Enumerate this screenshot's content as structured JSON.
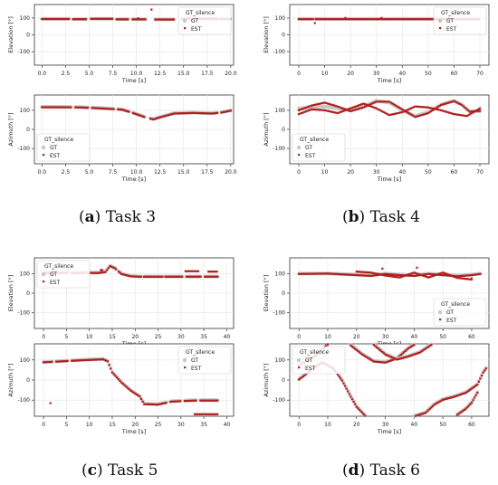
{
  "colors": {
    "gt": "#c8c8c8",
    "est": "#b21e1e",
    "grid": "#e4e4e4",
    "axis": "#333333"
  },
  "legend": {
    "silence": "GT_silence",
    "gt": "GT",
    "est": "EST"
  },
  "captions": [
    {
      "letter": "a",
      "text": " Task 3"
    },
    {
      "letter": "b",
      "text": " Task 4"
    },
    {
      "letter": "c",
      "text": " Task 5"
    },
    {
      "letter": "d",
      "text": " Task 6"
    }
  ],
  "chart_data": [
    {
      "panel": "a",
      "row": "elevation",
      "type": "scatter",
      "xlabel": "Time [s]",
      "ylabel": "Elevation [°]",
      "xlim": [
        -0.8,
        20.3
      ],
      "ylim": [
        -180,
        180
      ],
      "yticks": [
        -100,
        0,
        100
      ],
      "xticks": [
        0.0,
        2.5,
        5.0,
        7.5,
        10.0,
        12.5,
        15.0,
        17.5,
        20.0
      ],
      "xtick_labels": [
        "0.0",
        "2.5",
        "5.0",
        "7.5",
        "10.0",
        "12.5",
        "15.0",
        "17.5",
        "20.0"
      ],
      "legend_position": "top-right",
      "grid": true,
      "gt_segments": [
        [
          0,
          3,
          95
        ],
        [
          3.3,
          4.8,
          93
        ],
        [
          5.2,
          7.6,
          95
        ],
        [
          7.9,
          9.2,
          93
        ],
        [
          9.6,
          11.0,
          93
        ],
        [
          12.0,
          14.0,
          92
        ],
        [
          14.8,
          18.6,
          95
        ],
        [
          18.9,
          20.0,
          95
        ]
      ],
      "est_segments": [
        [
          0,
          3,
          94
        ],
        [
          3.3,
          4.8,
          93
        ],
        [
          5.2,
          7.6,
          95
        ],
        [
          7.9,
          9.2,
          92
        ],
        [
          9.6,
          11.0,
          92
        ],
        [
          12.0,
          14.0,
          91
        ],
        [
          14.8,
          18.6,
          95
        ],
        [
          18.9,
          20.0,
          94
        ]
      ],
      "est_points": [
        [
          11.6,
          150
        ],
        [
          10.2,
          98
        ]
      ]
    },
    {
      "panel": "a",
      "row": "azimuth",
      "type": "scatter",
      "xlabel": "Time [s]",
      "ylabel": "Azimuth [°]",
      "xlim": [
        -0.8,
        20.3
      ],
      "ylim": [
        -180,
        180
      ],
      "yticks": [
        -100,
        0,
        100
      ],
      "xticks": [
        0.0,
        2.5,
        5.0,
        7.5,
        10.0,
        12.5,
        15.0,
        17.5,
        20.0
      ],
      "xtick_labels": [
        "0.0",
        "2.5",
        "5.0",
        "7.5",
        "10.0",
        "12.5",
        "15.0",
        "17.5",
        "20.0"
      ],
      "legend_position": "bottom-left",
      "grid": true,
      "gt_curve": [
        [
          0,
          118
        ],
        [
          2,
          118
        ],
        [
          4,
          117
        ],
        [
          5,
          115
        ],
        [
          7,
          110
        ],
        [
          8.5,
          105
        ],
        [
          9.5,
          90
        ],
        [
          11,
          65
        ],
        [
          11.8,
          55
        ],
        [
          12.5,
          65
        ],
        [
          14,
          85
        ],
        [
          16,
          88
        ],
        [
          18,
          85
        ],
        [
          19,
          90
        ],
        [
          20,
          100
        ]
      ],
      "est_curve": [
        [
          0,
          116
        ],
        [
          2,
          116
        ],
        [
          4,
          115
        ],
        [
          5,
          113
        ],
        [
          7,
          108
        ],
        [
          8.5,
          103
        ],
        [
          9.5,
          88
        ],
        [
          11,
          62
        ],
        [
          11.8,
          52
        ],
        [
          12.5,
          63
        ],
        [
          14,
          83
        ],
        [
          16,
          86
        ],
        [
          18,
          83
        ],
        [
          19,
          88
        ],
        [
          20,
          98
        ]
      ],
      "gaps": [
        [
          3.2,
          3.5
        ],
        [
          5.0,
          5.3
        ],
        [
          7.7,
          8.0
        ],
        [
          9.3,
          9.6
        ],
        [
          11.0,
          11.4
        ],
        [
          18.6,
          18.9
        ]
      ]
    },
    {
      "panel": "b",
      "row": "elevation",
      "type": "scatter",
      "xlabel": "Time [s]",
      "ylabel": "Elevation [°]",
      "xlim": [
        -3.5,
        73.5
      ],
      "ylim": [
        -180,
        180
      ],
      "yticks": [
        -100,
        0,
        100
      ],
      "xticks": [
        0,
        10,
        20,
        30,
        40,
        50,
        60,
        70
      ],
      "xtick_labels": [
        "0",
        "10",
        "20",
        "30",
        "40",
        "50",
        "60",
        "70"
      ],
      "legend_position": "top-right",
      "grid": true,
      "gt_segments": [
        [
          0,
          6,
          95
        ],
        [
          6.5,
          70,
          95
        ]
      ],
      "est_segments": [
        [
          0,
          6,
          93
        ],
        [
          6.5,
          70,
          93
        ]
      ],
      "est_points": [
        [
          6.2,
          70
        ],
        [
          18,
          100
        ],
        [
          32,
          100
        ],
        [
          58,
          100
        ]
      ]
    },
    {
      "panel": "b",
      "row": "azimuth",
      "type": "scatter",
      "xlabel": "Time [s]",
      "ylabel": "Azimuth [°]",
      "xlim": [
        -3.5,
        73.5
      ],
      "ylim": [
        -180,
        180
      ],
      "yticks": [
        -100,
        0,
        100
      ],
      "xticks": [
        0,
        10,
        20,
        30,
        40,
        50,
        60,
        70
      ],
      "xtick_labels": [
        "0",
        "10",
        "20",
        "30",
        "40",
        "50",
        "60",
        "70"
      ],
      "legend_position": "bottom-left",
      "grid": true,
      "gt_curve": [
        [
          0,
          110
        ],
        [
          5,
          115
        ],
        [
          10,
          120
        ],
        [
          15,
          110
        ],
        [
          20,
          100
        ],
        [
          25,
          120
        ],
        [
          30,
          150
        ],
        [
          35,
          140
        ],
        [
          40,
          100
        ],
        [
          45,
          70
        ],
        [
          50,
          90
        ],
        [
          55,
          130
        ],
        [
          60,
          150
        ],
        [
          63,
          130
        ],
        [
          66,
          95
        ],
        [
          70,
          95
        ]
      ],
      "est_curve": [
        [
          0,
          100
        ],
        [
          5,
          125
        ],
        [
          10,
          140
        ],
        [
          15,
          120
        ],
        [
          20,
          95
        ],
        [
          25,
          115
        ],
        [
          30,
          145
        ],
        [
          35,
          145
        ],
        [
          40,
          105
        ],
        [
          45,
          65
        ],
        [
          50,
          85
        ],
        [
          55,
          128
        ],
        [
          60,
          148
        ],
        [
          63,
          128
        ],
        [
          66,
          93
        ],
        [
          70,
          97
        ]
      ],
      "est_curve2": [
        [
          0,
          80
        ],
        [
          5,
          105
        ],
        [
          10,
          100
        ],
        [
          15,
          85
        ],
        [
          20,
          110
        ],
        [
          25,
          135
        ],
        [
          30,
          110
        ],
        [
          35,
          75
        ],
        [
          40,
          90
        ],
        [
          45,
          120
        ],
        [
          50,
          115
        ],
        [
          55,
          100
        ],
        [
          60,
          80
        ],
        [
          65,
          70
        ],
        [
          70,
          110
        ]
      ],
      "gaps": []
    },
    {
      "panel": "c",
      "row": "elevation",
      "type": "scatter",
      "xlabel": "Time [s]",
      "ylabel": "Elevation [°]",
      "xlim": [
        -2,
        41.5
      ],
      "ylim": [
        -180,
        180
      ],
      "yticks": [
        -100,
        0,
        100
      ],
      "xticks": [
        0,
        5,
        10,
        15,
        20,
        25,
        30,
        35,
        40
      ],
      "xtick_labels": [
        "0",
        "5",
        "10",
        "15",
        "20",
        "25",
        "30",
        "35",
        "40"
      ],
      "legend_position": "top-left",
      "grid": true,
      "gt_curve": [
        [
          0,
          105
        ],
        [
          12,
          105
        ],
        [
          13.5,
          110
        ],
        [
          14.5,
          140
        ],
        [
          15.5,
          130
        ],
        [
          17,
          100
        ],
        [
          19,
          88
        ],
        [
          21,
          85
        ],
        [
          38,
          85
        ]
      ],
      "est_curve": [
        [
          0,
          103
        ],
        [
          12,
          103
        ],
        [
          13.5,
          108
        ],
        [
          14.5,
          138
        ],
        [
          15.5,
          128
        ],
        [
          17,
          98
        ],
        [
          19,
          86
        ],
        [
          21,
          84
        ],
        [
          38,
          84
        ]
      ],
      "gaps": [
        [
          2.5,
          3.0
        ],
        [
          5.5,
          6.0
        ],
        [
          9,
          9.3
        ],
        [
          16,
          16.3
        ],
        [
          21.5,
          21.8
        ],
        [
          26,
          26.5
        ],
        [
          30.5,
          31
        ],
        [
          34.5,
          35
        ]
      ],
      "est_segments": [
        [
          31,
          34,
          112
        ],
        [
          36,
          38,
          110
        ],
        [
          12.5,
          13,
          118
        ]
      ],
      "est_points": [
        [
          2,
          130
        ]
      ]
    },
    {
      "panel": "c",
      "row": "azimuth",
      "type": "scatter",
      "xlabel": "Time [s]",
      "ylabel": "Azimuth [°]",
      "xlim": [
        -2,
        41.5
      ],
      "ylim": [
        -180,
        180
      ],
      "yticks": [
        -100,
        0,
        100
      ],
      "xticks": [
        0,
        5,
        10,
        15,
        20,
        25,
        30,
        35,
        40
      ],
      "xtick_labels": [
        "0",
        "5",
        "10",
        "15",
        "20",
        "25",
        "30",
        "35",
        "40"
      ],
      "legend_position": "top-right",
      "grid": true,
      "gt_curve": [
        [
          0,
          90
        ],
        [
          4,
          95
        ],
        [
          8,
          100
        ],
        [
          13,
          105
        ],
        [
          14,
          95
        ],
        [
          15,
          40
        ],
        [
          17,
          -10
        ],
        [
          19,
          -50
        ],
        [
          21,
          -80
        ],
        [
          22,
          -118
        ],
        [
          25,
          -120
        ],
        [
          28,
          -105
        ],
        [
          33,
          -100
        ],
        [
          38,
          -100
        ]
      ],
      "est_curve": [
        [
          0,
          88
        ],
        [
          4,
          93
        ],
        [
          8,
          98
        ],
        [
          13,
          103
        ],
        [
          14,
          93
        ],
        [
          15,
          38
        ],
        [
          17,
          -12
        ],
        [
          19,
          -52
        ],
        [
          21,
          -82
        ],
        [
          22,
          -120
        ],
        [
          25,
          -122
        ],
        [
          28,
          -107
        ],
        [
          33,
          -102
        ],
        [
          38,
          -102
        ]
      ],
      "gaps": [
        [
          2,
          2.6
        ],
        [
          5.5,
          6
        ],
        [
          27,
          27.5
        ],
        [
          30,
          30.5
        ],
        [
          33.5,
          34
        ]
      ],
      "est_segments": [
        [
          33,
          38,
          -170
        ]
      ],
      "est_points": [
        [
          1.5,
          -115
        ]
      ]
    },
    {
      "panel": "d",
      "row": "elevation",
      "type": "scatter",
      "xlabel": "Time [s]",
      "ylabel": "Elevation [°]",
      "xlim": [
        -3.2,
        66
      ],
      "ylim": [
        -180,
        180
      ],
      "yticks": [
        -100,
        0,
        100
      ],
      "xticks": [
        0,
        10,
        20,
        30,
        40,
        50,
        60
      ],
      "xtick_labels": [
        "0",
        "10",
        "20",
        "30",
        "40",
        "50",
        "60"
      ],
      "legend_position": "bottom-right",
      "grid": true,
      "gt_curve": [
        [
          0,
          100
        ],
        [
          10,
          100
        ],
        [
          20,
          95
        ],
        [
          25,
          92
        ],
        [
          30,
          100
        ],
        [
          35,
          95
        ],
        [
          40,
          92
        ],
        [
          45,
          100
        ],
        [
          50,
          95
        ],
        [
          55,
          90
        ],
        [
          60,
          95
        ],
        [
          63,
          100
        ]
      ],
      "est_curve": [
        [
          0,
          98
        ],
        [
          10,
          100
        ],
        [
          20,
          92
        ],
        [
          25,
          88
        ],
        [
          30,
          98
        ],
        [
          35,
          92
        ],
        [
          40,
          88
        ],
        [
          45,
          98
        ],
        [
          50,
          92
        ],
        [
          55,
          86
        ],
        [
          60,
          92
        ],
        [
          63,
          98
        ]
      ],
      "est_curve2": [
        [
          20,
          110
        ],
        [
          25,
          105
        ],
        [
          30,
          90
        ],
        [
          35,
          80
        ],
        [
          40,
          105
        ],
        [
          45,
          80
        ],
        [
          50,
          105
        ],
        [
          55,
          78
        ],
        [
          60,
          70
        ]
      ],
      "gaps": [],
      "est_points": [
        [
          29,
          125
        ],
        [
          41,
          130
        ],
        [
          60,
          75
        ]
      ]
    },
    {
      "panel": "d",
      "row": "azimuth",
      "type": "scatter",
      "xlabel": "Time [s]",
      "ylabel": "Azimuth [°]",
      "xlim": [
        -3.2,
        66
      ],
      "ylim": [
        -180,
        180
      ],
      "yticks": [
        -100,
        0,
        100
      ],
      "xticks": [
        0,
        10,
        20,
        30,
        40,
        50,
        60
      ],
      "xtick_labels": [
        "0",
        "10",
        "20",
        "30",
        "40",
        "50",
        "60"
      ],
      "legend_position": "top-left",
      "grid": true,
      "gt_curve": [
        [
          0,
          70
        ],
        [
          5,
          110
        ],
        [
          10,
          175
        ]
      ],
      "est_curve": [
        [
          0,
          75
        ],
        [
          5,
          115
        ],
        [
          10,
          178
        ]
      ],
      "extra_curves": [
        [
          [
            0,
            5
          ],
          [
            5,
            60
          ],
          [
            8,
            90
          ],
          [
            12,
            60
          ],
          [
            15,
            0
          ],
          [
            18,
            -80
          ],
          [
            20,
            -130
          ],
          [
            23,
            -175
          ]
        ],
        [
          [
            18,
            175
          ],
          [
            22,
            130
          ],
          [
            26,
            95
          ],
          [
            30,
            90
          ],
          [
            34,
            110
          ],
          [
            38,
            160
          ],
          [
            40,
            178
          ]
        ],
        [
          [
            26,
            178
          ],
          [
            30,
            130
          ],
          [
            34,
            105
          ],
          [
            38,
            120
          ],
          [
            42,
            140
          ],
          [
            46,
            178
          ]
        ],
        [
          [
            40,
            -178
          ],
          [
            44,
            -160
          ],
          [
            47,
            -120
          ],
          [
            50,
            -95
          ],
          [
            54,
            -80
          ],
          [
            58,
            -60
          ],
          [
            62,
            -20
          ],
          [
            64,
            40
          ],
          [
            65,
            60
          ]
        ],
        [
          [
            55,
            -170
          ],
          [
            58,
            -140
          ],
          [
            60,
            -110
          ],
          [
            62,
            -60
          ]
        ]
      ],
      "gaps": []
    }
  ]
}
